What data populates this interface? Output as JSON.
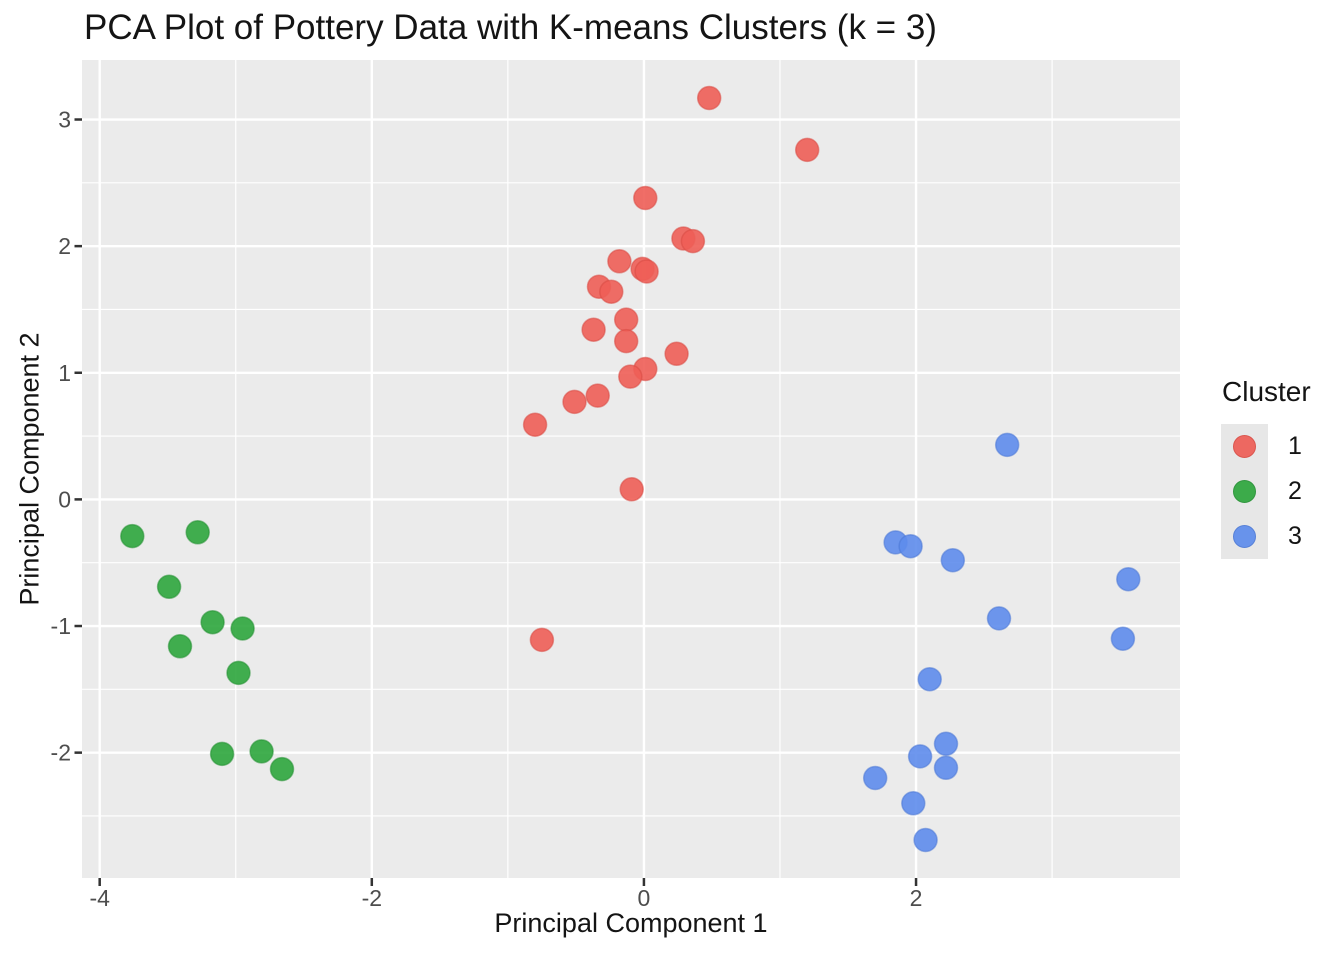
{
  "chart_data": {
    "type": "scatter",
    "title": "PCA Plot of Pottery Data with K-means Clusters (k = 3)",
    "xlabel": "Principal Component 1",
    "ylabel": "Principal Component 2",
    "xlim": [
      -4.13,
      3.94
    ],
    "ylim": [
      -2.99,
      3.47
    ],
    "x_ticks": [
      -4,
      -2,
      0,
      2
    ],
    "y_ticks": [
      -2,
      -1,
      0,
      1,
      2,
      3
    ],
    "grid": "white major and minor gridlines on grey panel",
    "panel_color": "#ebebeb",
    "gridline_color": "#ffffff",
    "tick_label_color": "#4d4d4d",
    "legend": {
      "title": "Cluster",
      "position": "right"
    },
    "series": [
      {
        "name": "1",
        "color": "#EE5E56",
        "stroke": "#D94A43",
        "points": [
          [
            0.48,
            3.17
          ],
          [
            1.2,
            2.76
          ],
          [
            0.01,
            2.38
          ],
          [
            0.29,
            2.06
          ],
          [
            0.36,
            2.04
          ],
          [
            -0.18,
            1.88
          ],
          [
            -0.01,
            1.82
          ],
          [
            0.02,
            1.8
          ],
          [
            -0.33,
            1.68
          ],
          [
            -0.24,
            1.64
          ],
          [
            -0.13,
            1.42
          ],
          [
            -0.37,
            1.34
          ],
          [
            -0.13,
            1.25
          ],
          [
            0.24,
            1.15
          ],
          [
            0.01,
            1.03
          ],
          [
            -0.1,
            0.97
          ],
          [
            -0.34,
            0.82
          ],
          [
            -0.51,
            0.77
          ],
          [
            -0.8,
            0.59
          ],
          [
            -0.09,
            0.08
          ],
          [
            -0.75,
            -1.11
          ]
        ]
      },
      {
        "name": "2",
        "color": "#2EA63D",
        "stroke": "#239032",
        "points": [
          [
            -3.76,
            -0.29
          ],
          [
            -3.28,
            -0.26
          ],
          [
            -3.49,
            -0.69
          ],
          [
            -3.17,
            -0.97
          ],
          [
            -2.95,
            -1.02
          ],
          [
            -3.41,
            -1.16
          ],
          [
            -2.98,
            -1.37
          ],
          [
            -3.1,
            -2.01
          ],
          [
            -2.81,
            -1.99
          ],
          [
            -2.66,
            -2.13
          ]
        ]
      },
      {
        "name": "3",
        "color": "#5E8CEC",
        "stroke": "#4C79D6",
        "points": [
          [
            2.67,
            0.43
          ],
          [
            1.85,
            -0.34
          ],
          [
            1.96,
            -0.37
          ],
          [
            2.27,
            -0.48
          ],
          [
            3.56,
            -0.63
          ],
          [
            2.61,
            -0.94
          ],
          [
            3.52,
            -1.1
          ],
          [
            2.1,
            -1.42
          ],
          [
            2.22,
            -1.93
          ],
          [
            2.03,
            -2.03
          ],
          [
            2.22,
            -2.12
          ],
          [
            1.7,
            -2.2
          ],
          [
            1.98,
            -2.4
          ],
          [
            2.07,
            -2.69
          ]
        ]
      }
    ]
  }
}
